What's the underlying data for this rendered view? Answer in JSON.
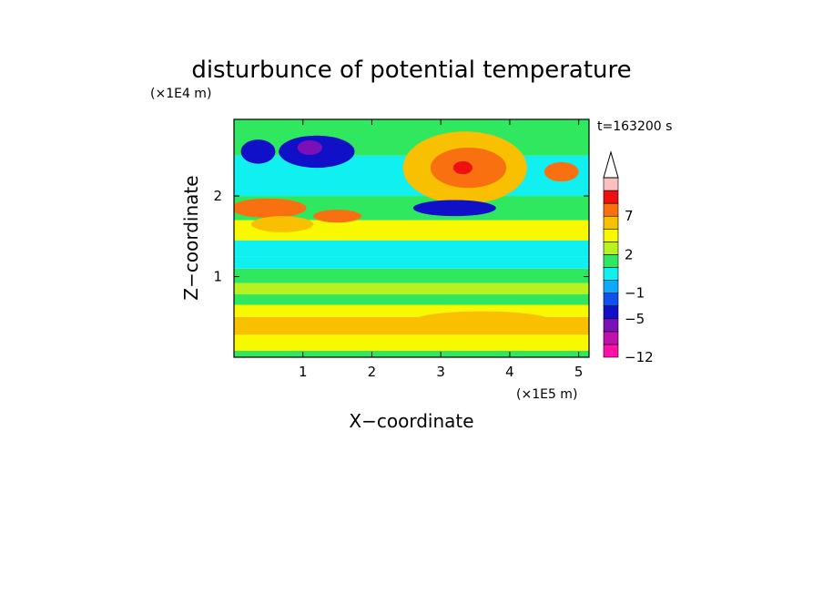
{
  "chart_data": {
    "type": "heatmap",
    "title": "disturbunce of potential temperature",
    "xlabel": "X−coordinate",
    "ylabel": "Z−coordinate",
    "x_unit": "(×1E5 m)",
    "y_unit": "(×1E4 m)",
    "time_label": "t=163200 s",
    "xlim": [
      0,
      5.15
    ],
    "ylim": [
      0,
      2.95
    ],
    "x_ticks": [
      1,
      2,
      3,
      4,
      5
    ],
    "x_tick_labels": [
      "1",
      "2",
      "3",
      "4",
      "5"
    ],
    "y_ticks": [
      1,
      2
    ],
    "y_tick_labels": [
      "1",
      "2"
    ],
    "colorbar": {
      "levels": [
        -12,
        -9,
        -7,
        -5,
        -3,
        -1,
        0,
        1,
        2,
        3,
        5,
        7,
        9,
        11
      ],
      "tick_labels": [
        {
          "level": 7,
          "label": "7"
        },
        {
          "level": 2,
          "label": "2"
        },
        {
          "level": -1,
          "label": "−1"
        },
        {
          "level": -5,
          "label": "−5"
        },
        {
          "level": -12,
          "label": "−12"
        }
      ],
      "colors": [
        "#ff10a8",
        "#c010b0",
        "#7a10b8",
        "#1010c8",
        "#1050f0",
        "#10a8ff",
        "#10f0f0",
        "#30e860",
        "#b8f020",
        "#f8f800",
        "#f8c000",
        "#f87010",
        "#f01010",
        "#f8c0c0"
      ],
      "extend": "max"
    },
    "bands": [
      {
        "z_bottom": 0.0,
        "z_top": 0.08,
        "class": "green",
        "value": 0.5
      },
      {
        "z_bottom": 0.08,
        "z_top": 0.28,
        "class": "yellow",
        "value": 2.5
      },
      {
        "z_bottom": 0.28,
        "z_top": 0.5,
        "class": "yellow-orange",
        "value": 3
      },
      {
        "z_bottom": 0.5,
        "z_top": 0.65,
        "class": "yellow",
        "value": 2.5
      },
      {
        "z_bottom": 0.65,
        "z_top": 0.78,
        "class": "green",
        "value": 0.5
      },
      {
        "z_bottom": 0.78,
        "z_top": 0.92,
        "class": "light-green",
        "value": 1.5
      },
      {
        "z_bottom": 0.92,
        "z_top": 1.1,
        "class": "green",
        "value": 0.5
      },
      {
        "z_bottom": 1.1,
        "z_top": 1.25,
        "class": "cyan",
        "value": -0.5
      },
      {
        "z_bottom": 1.25,
        "z_top": 1.45,
        "class": "cyan",
        "value": -0.5
      },
      {
        "z_bottom": 1.45,
        "z_top": 1.7,
        "class": "yellow",
        "value": 2.5
      },
      {
        "z_bottom": 1.7,
        "z_top": 2.0,
        "class": "green",
        "value": 0.5
      },
      {
        "z_bottom": 2.0,
        "z_top": 2.5,
        "class": "cyan",
        "value": -0.5
      },
      {
        "z_bottom": 2.5,
        "z_top": 2.95,
        "class": "green",
        "value": 0.5
      }
    ],
    "features": [
      {
        "shape": "ellipse",
        "x": 3.35,
        "z": 2.35,
        "rx": 0.9,
        "rz": 0.45,
        "class": "yellow-orange",
        "value": 4
      },
      {
        "shape": "ellipse",
        "x": 3.4,
        "z": 2.35,
        "rx": 0.55,
        "rz": 0.25,
        "class": "orange",
        "value": 6
      },
      {
        "shape": "ellipse",
        "x": 3.32,
        "z": 2.35,
        "rx": 0.14,
        "rz": 0.08,
        "class": "red",
        "value": 8
      },
      {
        "shape": "ellipse",
        "x": 1.2,
        "z": 2.55,
        "rx": 0.55,
        "rz": 0.2,
        "class": "blue",
        "value": -6
      },
      {
        "shape": "ellipse",
        "x": 1.1,
        "z": 2.6,
        "rx": 0.18,
        "rz": 0.09,
        "class": "purple",
        "value": -8
      },
      {
        "shape": "ellipse",
        "x": 0.35,
        "z": 2.55,
        "rx": 0.25,
        "rz": 0.15,
        "class": "blue",
        "value": -6
      },
      {
        "shape": "ellipse",
        "x": 3.2,
        "z": 1.85,
        "rx": 0.6,
        "rz": 0.1,
        "class": "blue",
        "value": -6
      },
      {
        "shape": "ellipse",
        "x": 0.5,
        "z": 1.85,
        "rx": 0.55,
        "rz": 0.12,
        "class": "orange",
        "value": 5
      },
      {
        "shape": "ellipse",
        "x": 1.5,
        "z": 1.75,
        "rx": 0.35,
        "rz": 0.08,
        "class": "orange",
        "value": 5
      },
      {
        "shape": "ellipse",
        "x": 4.75,
        "z": 2.3,
        "rx": 0.25,
        "rz": 0.12,
        "class": "orange",
        "value": 5
      },
      {
        "shape": "ellipse",
        "x": 3.6,
        "z": 0.45,
        "rx": 1.0,
        "rz": 0.12,
        "class": "yellow-orange",
        "value": 3
      },
      {
        "shape": "ellipse",
        "x": 0.7,
        "z": 1.65,
        "rx": 0.45,
        "rz": 0.1,
        "class": "yellow-orange",
        "value": 3
      }
    ]
  }
}
